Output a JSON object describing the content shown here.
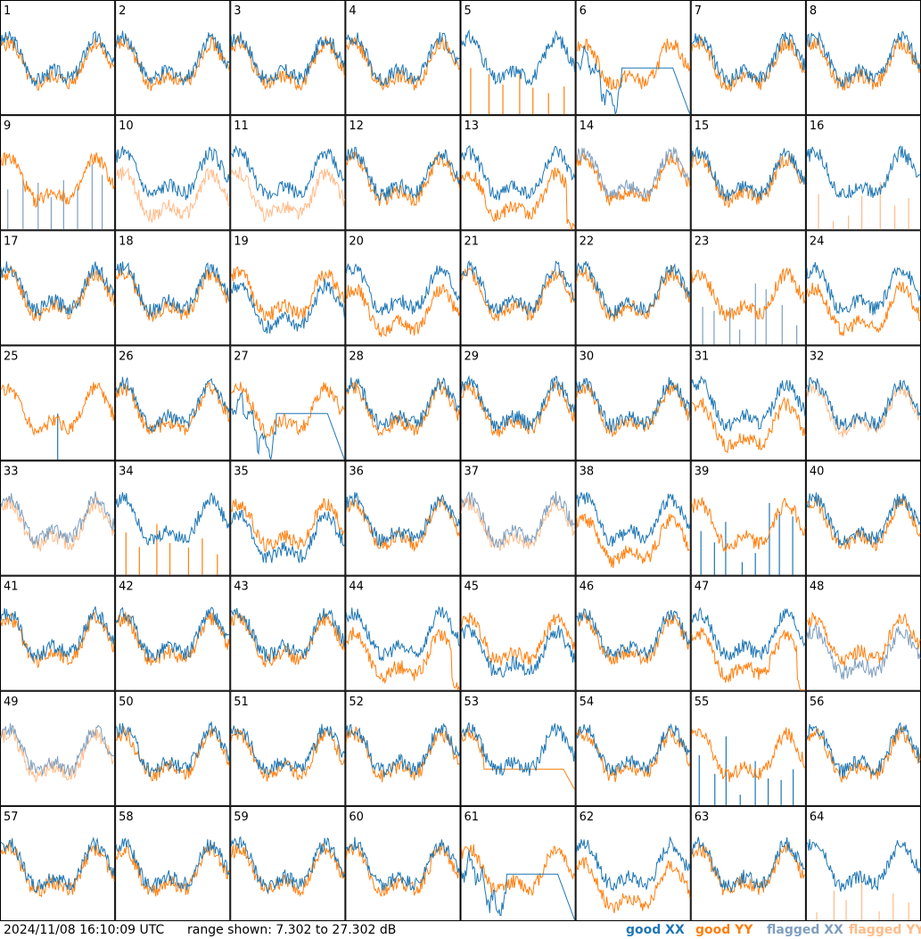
{
  "chart_data": {
    "type": "line",
    "description_text": "",
    "panels": [
      {
        "id": "1",
        "xx": "good",
        "yy": "good",
        "pattern": "normal"
      },
      {
        "id": "2",
        "xx": "good",
        "yy": "good",
        "pattern": "normal"
      },
      {
        "id": "3",
        "xx": "good",
        "yy": "good",
        "pattern": "normal"
      },
      {
        "id": "4",
        "xx": "good",
        "yy": "good",
        "pattern": "normal"
      },
      {
        "id": "5",
        "xx": "good",
        "yy": "good",
        "pattern": "yy_spikes"
      },
      {
        "id": "6",
        "xx": "good",
        "yy": "good",
        "pattern": "xx_decay"
      },
      {
        "id": "7",
        "xx": "good",
        "yy": "good",
        "pattern": "normal"
      },
      {
        "id": "8",
        "xx": "good",
        "yy": "good",
        "pattern": "normal"
      },
      {
        "id": "9",
        "xx": "flagged",
        "yy": "good",
        "pattern": "xx_spikes"
      },
      {
        "id": "10",
        "xx": "good",
        "yy": "flagged",
        "pattern": "yy_low"
      },
      {
        "id": "11",
        "xx": "good",
        "yy": "flagged",
        "pattern": "yy_low"
      },
      {
        "id": "12",
        "xx": "good",
        "yy": "good",
        "pattern": "normal"
      },
      {
        "id": "13",
        "xx": "good",
        "yy": "good",
        "pattern": "yy_low_drop"
      },
      {
        "id": "14",
        "xx": "flagged",
        "yy": "good",
        "pattern": "normal"
      },
      {
        "id": "15",
        "xx": "good",
        "yy": "good",
        "pattern": "normal"
      },
      {
        "id": "16",
        "xx": "good",
        "yy": "flagged",
        "pattern": "yy_spikes"
      },
      {
        "id": "17",
        "xx": "good",
        "yy": "good",
        "pattern": "normal"
      },
      {
        "id": "18",
        "xx": "good",
        "yy": "good",
        "pattern": "normal"
      },
      {
        "id": "19",
        "xx": "good",
        "yy": "good",
        "pattern": "xx_low"
      },
      {
        "id": "20",
        "xx": "good",
        "yy": "good",
        "pattern": "yy_low"
      },
      {
        "id": "21",
        "xx": "good",
        "yy": "good",
        "pattern": "normal"
      },
      {
        "id": "22",
        "xx": "good",
        "yy": "good",
        "pattern": "normal"
      },
      {
        "id": "23",
        "xx": "flagged",
        "yy": "good",
        "pattern": "xx_spikes"
      },
      {
        "id": "24",
        "xx": "good",
        "yy": "good",
        "pattern": "yy_low"
      },
      {
        "id": "25",
        "xx": "good",
        "yy": "good",
        "pattern": "xx_spikes_one"
      },
      {
        "id": "26",
        "xx": "good",
        "yy": "good",
        "pattern": "normal"
      },
      {
        "id": "27",
        "xx": "good",
        "yy": "good",
        "pattern": "xx_decay"
      },
      {
        "id": "28",
        "xx": "good",
        "yy": "good",
        "pattern": "normal"
      },
      {
        "id": "29",
        "xx": "good",
        "yy": "good",
        "pattern": "normal"
      },
      {
        "id": "30",
        "xx": "good",
        "yy": "good",
        "pattern": "normal"
      },
      {
        "id": "31",
        "xx": "good",
        "yy": "good",
        "pattern": "yy_low"
      },
      {
        "id": "32",
        "xx": "good",
        "yy": "flagged",
        "pattern": "flagged_yy_noisy"
      },
      {
        "id": "33",
        "xx": "flagged",
        "yy": "flagged",
        "pattern": "normal"
      },
      {
        "id": "34",
        "xx": "good",
        "yy": "good",
        "pattern": "yy_spikes"
      },
      {
        "id": "35",
        "xx": "good",
        "yy": "good",
        "pattern": "xx_low"
      },
      {
        "id": "36",
        "xx": "good",
        "yy": "good",
        "pattern": "normal"
      },
      {
        "id": "37",
        "xx": "flagged",
        "yy": "flagged",
        "pattern": "normal"
      },
      {
        "id": "38",
        "xx": "good",
        "yy": "good",
        "pattern": "yy_low"
      },
      {
        "id": "39",
        "xx": "good",
        "yy": "good",
        "pattern": "xx_spikes"
      },
      {
        "id": "40",
        "xx": "good",
        "yy": "good",
        "pattern": "normal"
      },
      {
        "id": "41",
        "xx": "good",
        "yy": "good",
        "pattern": "normal"
      },
      {
        "id": "42",
        "xx": "good",
        "yy": "good",
        "pattern": "normal"
      },
      {
        "id": "43",
        "xx": "good",
        "yy": "good",
        "pattern": "normal"
      },
      {
        "id": "44",
        "xx": "good",
        "yy": "good",
        "pattern": "yy_low_drop"
      },
      {
        "id": "45",
        "xx": "good",
        "yy": "good",
        "pattern": "xx_low"
      },
      {
        "id": "46",
        "xx": "good",
        "yy": "good",
        "pattern": "normal"
      },
      {
        "id": "47",
        "xx": "good",
        "yy": "good",
        "pattern": "yy_low_drop"
      },
      {
        "id": "48",
        "xx": "flagged",
        "yy": "good",
        "pattern": "xx_low"
      },
      {
        "id": "49",
        "xx": "flagged",
        "yy": "flagged",
        "pattern": "normal"
      },
      {
        "id": "50",
        "xx": "good",
        "yy": "good",
        "pattern": "normal"
      },
      {
        "id": "51",
        "xx": "good",
        "yy": "good",
        "pattern": "normal"
      },
      {
        "id": "52",
        "xx": "good",
        "yy": "good",
        "pattern": "normal"
      },
      {
        "id": "53",
        "xx": "good",
        "yy": "good",
        "pattern": "yy_decay"
      },
      {
        "id": "54",
        "xx": "good",
        "yy": "good",
        "pattern": "normal"
      },
      {
        "id": "55",
        "xx": "good",
        "yy": "good",
        "pattern": "xx_spikes"
      },
      {
        "id": "56",
        "xx": "good",
        "yy": "good",
        "pattern": "normal"
      },
      {
        "id": "57",
        "xx": "good",
        "yy": "good",
        "pattern": "normal"
      },
      {
        "id": "58",
        "xx": "good",
        "yy": "good",
        "pattern": "normal"
      },
      {
        "id": "59",
        "xx": "good",
        "yy": "good",
        "pattern": "normal"
      },
      {
        "id": "60",
        "xx": "good",
        "yy": "good",
        "pattern": "normal"
      },
      {
        "id": "61",
        "xx": "good",
        "yy": "good",
        "pattern": "xx_decay"
      },
      {
        "id": "62",
        "xx": "good",
        "yy": "good",
        "pattern": "yy_low"
      },
      {
        "id": "63",
        "xx": "good",
        "yy": "good",
        "pattern": "normal"
      },
      {
        "id": "64",
        "xx": "good",
        "yy": "flagged",
        "pattern": "yy_spikes"
      }
    ],
    "legend": [
      {
        "label": "good XX",
        "color": "#1f77b4"
      },
      {
        "label": "good YY",
        "color": "#ff7f0e"
      },
      {
        "label": "flagged XX",
        "color": "#7f9fbf"
      },
      {
        "label": "flagged YY",
        "color": "#ffbb88"
      }
    ],
    "grid": {
      "rows": 8,
      "cols": 8
    },
    "legend_placement": "bottom-right"
  },
  "footer": {
    "timestamp": "2024/11/08 16:10:09 UTC",
    "range": "range shown: 7.302 to 27.302 dB"
  },
  "colors": {
    "good_xx": "#1f77b4",
    "good_yy": "#ff7f0e",
    "flagged_xx": "#7f9fbf",
    "flagged_yy": "#ffbb88",
    "border": "#000000"
  }
}
